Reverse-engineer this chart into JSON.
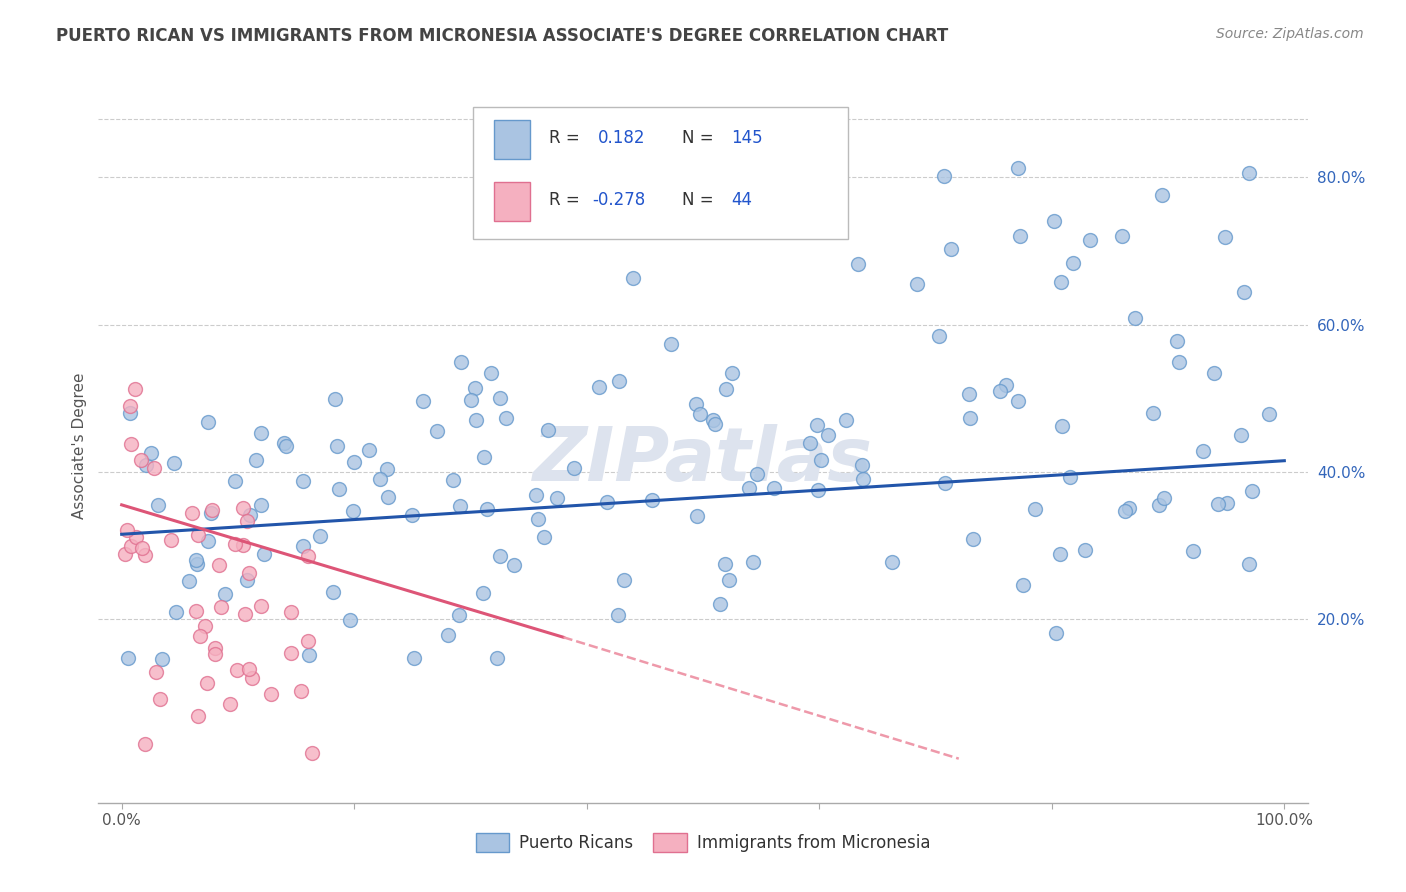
{
  "title": "PUERTO RICAN VS IMMIGRANTS FROM MICRONESIA ASSOCIATE'S DEGREE CORRELATION CHART",
  "source_text": "Source: ZipAtlas.com",
  "ylabel": "Associate's Degree",
  "watermark": "ZIPatlas",
  "xlim": [
    -0.02,
    1.02
  ],
  "ylim": [
    -0.05,
    0.92
  ],
  "plot_xlim": [
    0.0,
    1.0
  ],
  "plot_ylim": [
    0.0,
    0.88
  ],
  "xtick_positions": [
    0.0,
    0.2,
    0.4,
    0.6,
    0.8,
    1.0
  ],
  "xticklabels": [
    "0.0%",
    "",
    "",
    "",
    "",
    "100.0%"
  ],
  "yticks_right": [
    0.2,
    0.4,
    0.6,
    0.8
  ],
  "ytick_right_labels": [
    "20.0%",
    "40.0%",
    "60.0%",
    "80.0%"
  ],
  "blue_color": "#aac4e2",
  "pink_color": "#f5b0c0",
  "blue_edge": "#6699cc",
  "pink_edge": "#e07090",
  "blue_line_color": "#2255aa",
  "pink_line_color": "#dd5577",
  "pink_dash_color": "#ee99aa",
  "legend_blue_face": "#aac4e2",
  "legend_pink_face": "#f5b0c0",
  "r_blue": 0.182,
  "n_blue": 145,
  "r_pink": -0.278,
  "n_pink": 44,
  "blue_trend_y_start": 0.315,
  "blue_trend_y_end": 0.415,
  "pink_trend_x_solid_end": 0.38,
  "pink_trend_y_solid_start": 0.355,
  "pink_trend_y_solid_end": 0.175,
  "pink_trend_x_dashed_end": 0.72,
  "pink_trend_y_dashed_end": 0.01,
  "background_color": "#ffffff",
  "grid_color": "#cccccc",
  "title_color": "#444444",
  "source_color": "#888888",
  "watermark_color": "#dde3ee",
  "marker_size": 100,
  "legend_text_color_label": "#333333",
  "legend_text_color_value": "#2255cc"
}
